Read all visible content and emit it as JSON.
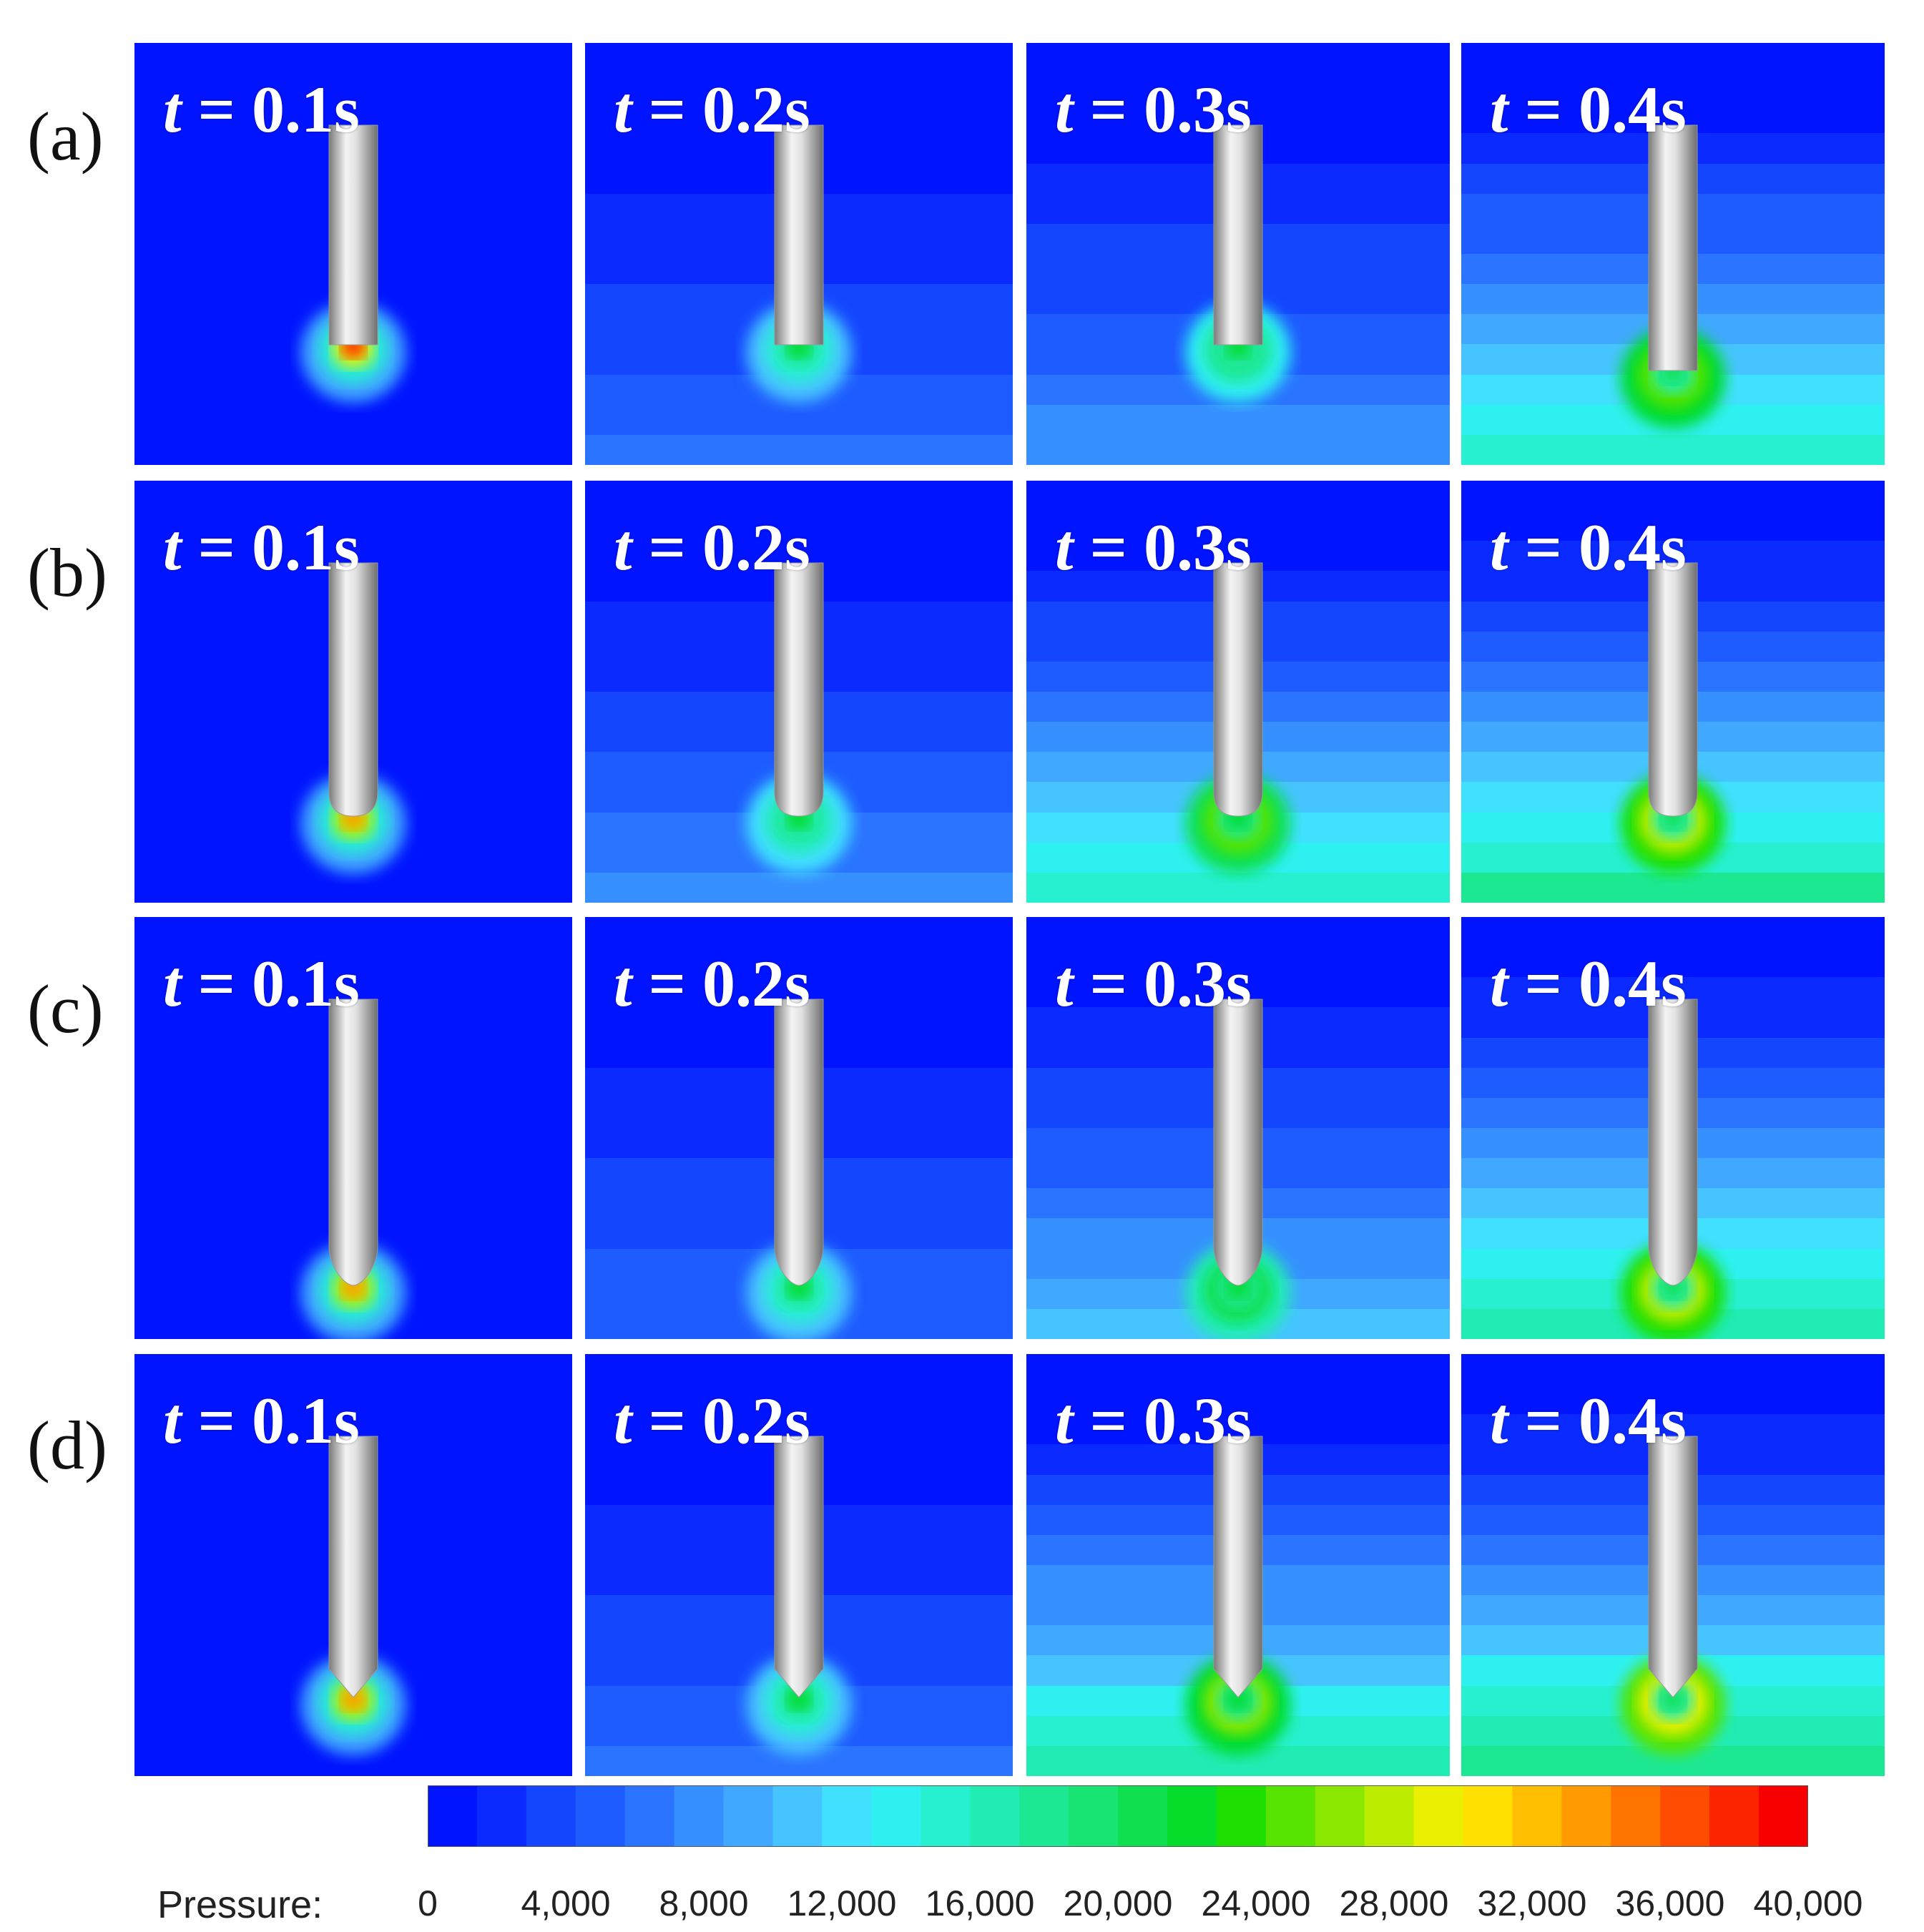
{
  "rows": [
    {
      "label": "(a)",
      "tip": "flat",
      "panels": [
        {
          "time": "0.1s",
          "ambient": 0.02
        },
        {
          "time": "0.2s",
          "ambient": 0.16
        },
        {
          "time": "0.3s",
          "ambient": 0.22
        },
        {
          "time": "0.4s",
          "ambient": 0.42
        }
      ]
    },
    {
      "label": "(b)",
      "tip": "round",
      "panels": [
        {
          "time": "0.1s",
          "ambient": 0.02
        },
        {
          "time": "0.2s",
          "ambient": 0.2
        },
        {
          "time": "0.3s",
          "ambient": 0.4
        },
        {
          "time": "0.4s",
          "ambient": 0.48
        }
      ]
    },
    {
      "label": "(c)",
      "tip": "ogive",
      "panels": [
        {
          "time": "0.1s",
          "ambient": 0.02
        },
        {
          "time": "0.2s",
          "ambient": 0.15
        },
        {
          "time": "0.3s",
          "ambient": 0.28
        },
        {
          "time": "0.4s",
          "ambient": 0.46
        }
      ]
    },
    {
      "label": "(d)",
      "tip": "cone",
      "panels": [
        {
          "time": "0.1s",
          "ambient": 0.02
        },
        {
          "time": "0.2s",
          "ambient": 0.16
        },
        {
          "time": "0.3s",
          "ambient": 0.44
        },
        {
          "time": "0.4s",
          "ambient": 0.5
        }
      ]
    }
  ],
  "time_prefix": "t",
  "time_equals": " = ",
  "colorbar": {
    "title": "Pressure:",
    "ticks": [
      "0",
      "4,000",
      "8,000",
      "12,000",
      "16,000",
      "20,000",
      "24,000",
      "28,000",
      "32,000",
      "36,000",
      "40,000"
    ],
    "colors": [
      "#0014ff",
      "#0a2aff",
      "#1446ff",
      "#1e5cff",
      "#2a74ff",
      "#3690ff",
      "#40a8ff",
      "#46c4ff",
      "#40e0ff",
      "#2ef0f0",
      "#26f0d0",
      "#20ecb4",
      "#1ce894",
      "#18e474",
      "#10e050",
      "#06dc2a",
      "#1ee000",
      "#56e400",
      "#8ae800",
      "#bcec00",
      "#eaf000",
      "#ffe000",
      "#ffbe00",
      "#ff9a00",
      "#ff7400",
      "#ff4c00",
      "#ff2400",
      "#f80000"
    ]
  }
}
